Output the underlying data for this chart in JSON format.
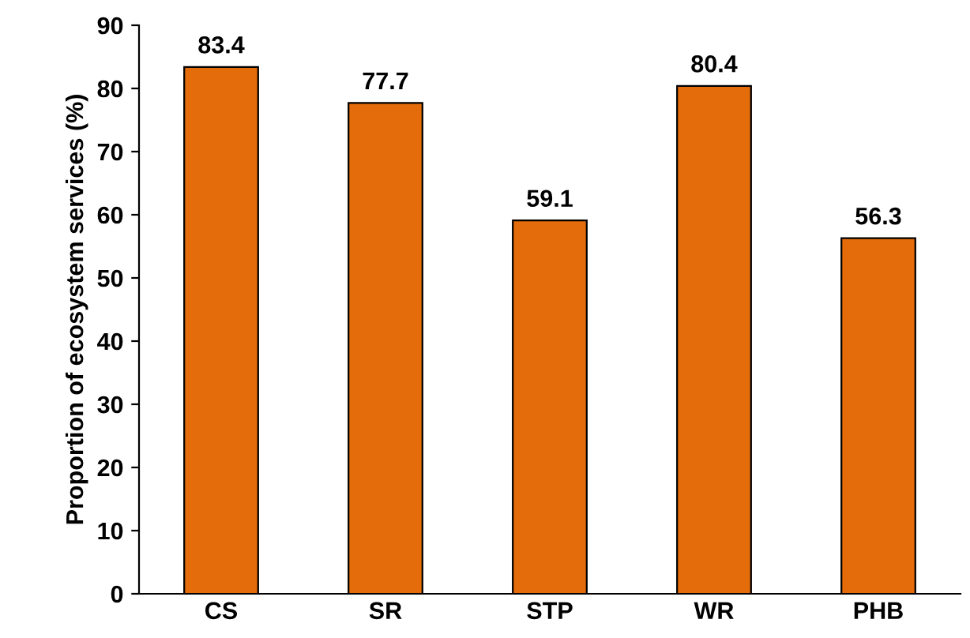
{
  "chart_data": {
    "type": "bar",
    "ylabel": "Proportion of ecosystem services (%)",
    "categories": [
      "CS",
      "SR",
      "STP",
      "WR",
      "PHB"
    ],
    "values": [
      83.4,
      77.7,
      59.1,
      80.4,
      56.3
    ],
    "color": "#e46c0a",
    "ylim": [
      0,
      90
    ],
    "yticks": [
      0,
      10,
      20,
      30,
      40,
      50,
      60,
      70,
      80,
      90
    ],
    "data_labels": true,
    "grid": false,
    "legend": false
  }
}
